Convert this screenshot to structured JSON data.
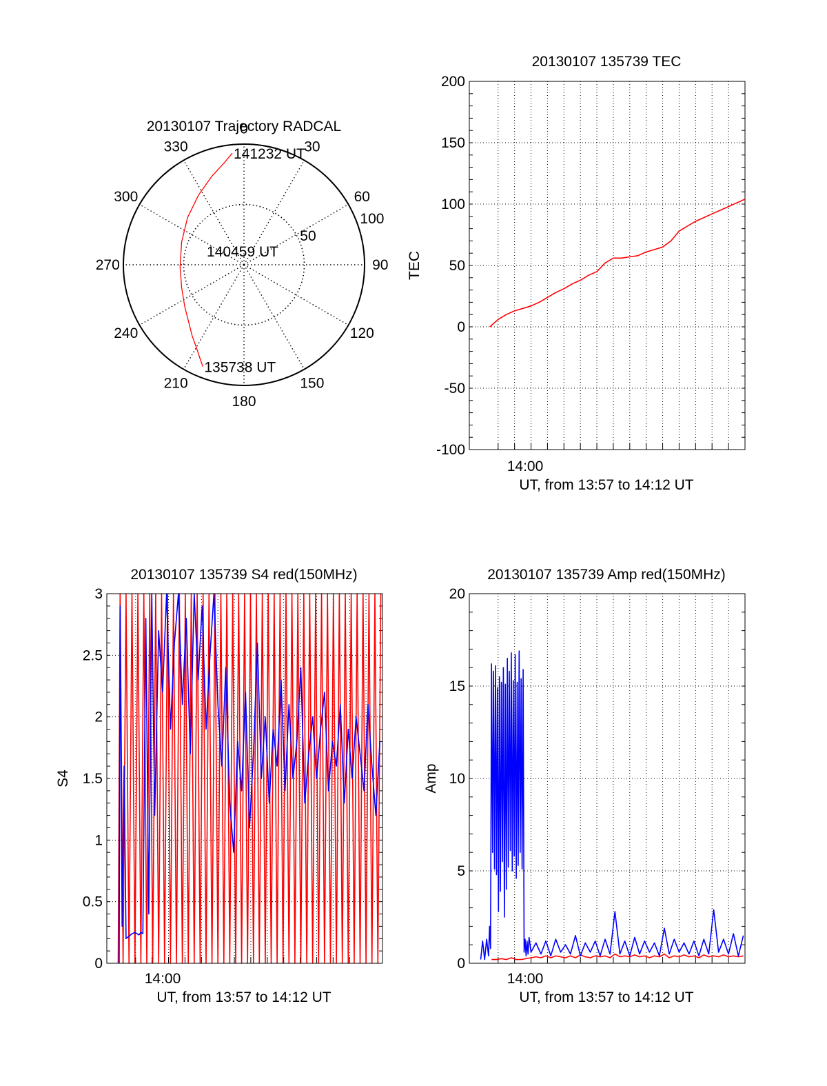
{
  "colors": {
    "red": "#ff0000",
    "blue": "#0000ff",
    "axis": "#000000",
    "grid": "#000000",
    "background": "#ffffff"
  },
  "chart_data": [
    {
      "id": "trajectory",
      "type": "scatter",
      "projection": "polar",
      "title": "20130107 Trajectory RADCAL",
      "azimuth_ticks": [
        "0",
        "30",
        "60",
        "90",
        "120",
        "150",
        "180",
        "210",
        "240",
        "270",
        "300",
        "330"
      ],
      "elevation_ring_labels": [
        "50",
        "100"
      ],
      "elevation_rings": [
        50,
        100
      ],
      "azimuth_lines_deg": [
        0,
        30,
        60,
        90,
        120,
        150,
        180,
        210,
        240,
        270,
        300,
        330
      ],
      "grid": "dotted",
      "points_label": [
        "140459 UT",
        "141232 UT",
        "135738 UT"
      ],
      "series": [
        {
          "color": "red",
          "azimuth_deg": [
            202,
            205,
            210,
            216,
            224,
            235,
            250,
            268,
            290,
            310,
            327,
            340,
            349,
            354
          ],
          "zenith": [
            91,
            86,
            79,
            73,
            66,
            60,
            55,
            53,
            55,
            61,
            69,
            78,
            86,
            93
          ]
        }
      ],
      "annotations": [
        {
          "text": "141232 UT",
          "azimuth_deg": 354,
          "zenith": 93
        },
        {
          "text": "140459 UT",
          "azimuth_deg": 0,
          "zenith": 0
        },
        {
          "text": "135738 UT",
          "azimuth_deg": 202,
          "zenith": 91
        }
      ]
    },
    {
      "id": "tec",
      "type": "line",
      "title": "20130107 135739 TEC",
      "xlabel": "UT, from 13:57 to 14:12 UT",
      "ylabel": "TEC",
      "x_tick_label": "14:00",
      "xlim": [
        13.9375,
        14.2167
      ],
      "ylim": [
        -100,
        200
      ],
      "y_ticks": [
        -100,
        -50,
        0,
        50,
        100,
        150,
        200
      ],
      "y_tick_labels": [
        "-100",
        "-50",
        "0",
        "50",
        "100",
        "150",
        "200"
      ],
      "grid": "dotted",
      "series": [
        {
          "color": "red",
          "x": [
            13.9583,
            13.9667,
            13.975,
            13.9833,
            13.9917,
            14.0,
            14.0083,
            14.0167,
            14.025,
            14.0333,
            14.0417,
            14.05,
            14.0583,
            14.0667,
            14.075,
            14.0833,
            14.0917,
            14.1,
            14.1083,
            14.1167,
            14.125,
            14.1333,
            14.1417,
            14.15,
            14.1583,
            14.1667,
            14.175,
            14.1833,
            14.1917,
            14.2,
            14.2083,
            14.2167
          ],
          "y": [
            0,
            6,
            10,
            13,
            15,
            17,
            20,
            24,
            28,
            31,
            35,
            38,
            42,
            45,
            52,
            56,
            56,
            57,
            58,
            61,
            63,
            65,
            70,
            78,
            82,
            86,
            89,
            92,
            95,
            98,
            101,
            104
          ]
        }
      ]
    },
    {
      "id": "s4",
      "type": "line",
      "title": "20130107 135739 S4 red(150MHz)",
      "xlabel": "UT, from 13:57 to 14:12 UT",
      "ylabel": "S4",
      "x_tick_label": "14:00",
      "xlim": [
        13.9375,
        14.2167
      ],
      "ylim": [
        0,
        3
      ],
      "y_ticks": [
        0,
        0.5,
        1,
        1.5,
        2,
        2.5,
        3
      ],
      "y_tick_labels": [
        "0",
        "0.5",
        "1",
        "1.5",
        "2",
        "2.5",
        "3"
      ],
      "grid": "dotted",
      "series": [
        {
          "color": "red",
          "x": [
            13.949,
            13.951,
            13.954,
            13.957,
            13.96,
            13.963,
            13.966,
            13.969,
            13.972,
            13.975,
            13.978,
            13.981,
            13.984,
            13.987,
            13.99,
            13.993,
            13.996,
            13.999,
            14.002,
            14.005,
            14.008,
            14.011,
            14.014,
            14.017,
            14.02,
            14.023,
            14.026,
            14.029,
            14.032,
            14.035,
            14.038,
            14.041,
            14.044,
            14.047,
            14.05,
            14.053,
            14.056,
            14.059,
            14.062,
            14.065,
            14.068,
            14.071,
            14.074,
            14.077,
            14.08,
            14.083,
            14.086,
            14.089,
            14.092,
            14.095,
            14.098,
            14.101,
            14.104,
            14.107,
            14.11,
            14.113,
            14.116,
            14.119,
            14.122,
            14.125,
            14.128,
            14.131,
            14.134,
            14.137,
            14.14,
            14.143,
            14.146,
            14.149,
            14.152,
            14.155,
            14.158,
            14.161,
            14.164,
            14.167,
            14.17,
            14.173,
            14.176,
            14.179,
            14.182,
            14.185,
            14.188,
            14.191,
            14.194,
            14.197,
            14.2,
            14.203,
            14.206,
            14.209,
            14.212,
            14.215
          ],
          "y": [
            0,
            3,
            0,
            3,
            0,
            3,
            0,
            3,
            0,
            3,
            0,
            3,
            0,
            3,
            0,
            3,
            0,
            3,
            0,
            3,
            0,
            3,
            0,
            3,
            0,
            3,
            0,
            3,
            0,
            3,
            0,
            3,
            0,
            3,
            0,
            3,
            0,
            3,
            0,
            3,
            0,
            3,
            0,
            3,
            0,
            3,
            0,
            3,
            0,
            3,
            0,
            3,
            0,
            3,
            0,
            3,
            0,
            3,
            0,
            3,
            0,
            3,
            0,
            3,
            0,
            3,
            0,
            3,
            0,
            3,
            0,
            3,
            0,
            3,
            0,
            3,
            0,
            3,
            0,
            3,
            0,
            3,
            0,
            3,
            0,
            3,
            0,
            3,
            0,
            3
          ]
        },
        {
          "color": "blue",
          "x": [
            13.95,
            13.951,
            13.953,
            13.955,
            13.957,
            13.96,
            13.963,
            13.966,
            13.968,
            13.97,
            13.972,
            13.974,
            13.977,
            13.98,
            13.983,
            13.986,
            13.99,
            13.994,
            13.998,
            14.002,
            14.006,
            14.01,
            14.014,
            14.018,
            14.022,
            14.026,
            14.03,
            14.034,
            14.038,
            14.042,
            14.046,
            14.05,
            14.054,
            14.058,
            14.062,
            14.066,
            14.07,
            14.074,
            14.078,
            14.082,
            14.086,
            14.09,
            14.094,
            14.098,
            14.102,
            14.106,
            14.11,
            14.114,
            14.118,
            14.122,
            14.126,
            14.13,
            14.134,
            14.138,
            14.142,
            14.146,
            14.15,
            14.154,
            14.158,
            14.162,
            14.166,
            14.17,
            14.174,
            14.178,
            14.182,
            14.186,
            14.19,
            14.194,
            14.198,
            14.202,
            14.206,
            14.21,
            14.214
          ],
          "y": [
            0,
            2.9,
            0.3,
            1.6,
            0.2,
            0.22,
            0.24,
            0.25,
            0.24,
            0.23,
            0.25,
            0.24,
            2.8,
            0.4,
            3,
            1.2,
            2.7,
            2.2,
            3,
            1.9,
            2.6,
            3,
            2.1,
            2.8,
            1.7,
            3,
            2.3,
            2.9,
            1.9,
            2.5,
            3,
            2.1,
            1.6,
            2.4,
            1.3,
            0.9,
            1.8,
            1.4,
            2.2,
            1.1,
            1.7,
            2.6,
            1.5,
            2.0,
            1.3,
            1.9,
            1.6,
            2.3,
            1.4,
            2.1,
            1.5,
            1.8,
            2.4,
            1.3,
            1.7,
            2.0,
            1.5,
            1.9,
            2.2,
            1.4,
            1.8,
            1.6,
            2.1,
            1.3,
            1.9,
            1.5,
            2.0,
            1.7,
            1.4,
            2.1,
            1.6,
            1.2,
            1.8
          ]
        }
      ]
    },
    {
      "id": "amp",
      "type": "line",
      "title": "20130107 135739 Amp red(150MHz)",
      "xlabel": "UT, from 13:57 to 14:12 UT",
      "ylabel": "Amp",
      "x_tick_label": "14:00",
      "xlim": [
        13.9375,
        14.2167
      ],
      "ylim": [
        0,
        20
      ],
      "y_ticks": [
        0,
        5,
        10,
        15,
        20
      ],
      "y_tick_labels": [
        "0",
        "5",
        "10",
        "15",
        "20"
      ],
      "grid": "dotted",
      "series": [
        {
          "color": "red",
          "x": [
            13.96,
            13.965,
            13.97,
            13.975,
            13.98,
            13.985,
            13.99,
            13.995,
            14.0,
            14.005,
            14.01,
            14.015,
            14.02,
            14.025,
            14.03,
            14.035,
            14.04,
            14.045,
            14.05,
            14.055,
            14.06,
            14.065,
            14.07,
            14.075,
            14.08,
            14.085,
            14.09,
            14.095,
            14.1,
            14.105,
            14.11,
            14.115,
            14.12,
            14.125,
            14.13,
            14.135,
            14.14,
            14.145,
            14.15,
            14.155,
            14.16,
            14.165,
            14.17,
            14.175,
            14.18,
            14.185,
            14.19,
            14.195,
            14.2,
            14.205,
            14.21,
            14.215
          ],
          "y": [
            0.2,
            0.2,
            0.25,
            0.2,
            0.3,
            0.2,
            0.2,
            0.25,
            0.3,
            0.35,
            0.3,
            0.4,
            0.3,
            0.4,
            0.35,
            0.3,
            0.4,
            0.3,
            0.45,
            0.35,
            0.3,
            0.4,
            0.35,
            0.4,
            0.3,
            0.5,
            0.35,
            0.4,
            0.35,
            0.45,
            0.35,
            0.4,
            0.3,
            0.4,
            0.35,
            0.5,
            0.3,
            0.4,
            0.35,
            0.45,
            0.35,
            0.4,
            0.3,
            0.45,
            0.35,
            0.4,
            0.35,
            0.45,
            0.35,
            0.4,
            0.35,
            0.4
          ]
        },
        {
          "color": "blue",
          "x": [
            13.949,
            13.951,
            13.953,
            13.955,
            13.957,
            13.958,
            13.959,
            13.96,
            13.961,
            13.962,
            13.963,
            13.964,
            13.965,
            13.966,
            13.967,
            13.968,
            13.969,
            13.97,
            13.971,
            13.972,
            13.973,
            13.974,
            13.975,
            13.976,
            13.977,
            13.978,
            13.979,
            13.98,
            13.981,
            13.982,
            13.983,
            13.984,
            13.985,
            13.986,
            13.987,
            13.988,
            13.989,
            13.99,
            13.991,
            13.992,
            13.993,
            13.994,
            13.995,
            13.996,
            13.997,
            13.998,
            14.0,
            14.005,
            14.01,
            14.015,
            14.02,
            14.025,
            14.03,
            14.035,
            14.04,
            14.045,
            14.05,
            14.055,
            14.06,
            14.065,
            14.07,
            14.075,
            14.08,
            14.085,
            14.09,
            14.095,
            14.1,
            14.105,
            14.11,
            14.115,
            14.12,
            14.125,
            14.13,
            14.135,
            14.14,
            14.145,
            14.15,
            14.155,
            14.16,
            14.165,
            14.17,
            14.175,
            14.18,
            14.185,
            14.19,
            14.195,
            14.2,
            14.205,
            14.21,
            14.215
          ],
          "y": [
            0.2,
            1.2,
            0.2,
            1.3,
            0.4,
            2.0,
            0.8,
            16.2,
            6.0,
            15.8,
            5.1,
            16.1,
            4.8,
            14.9,
            2.8,
            15.5,
            3.9,
            15.2,
            5.5,
            16.0,
            2.5,
            15.1,
            4.0,
            16.5,
            5.2,
            15.8,
            6.1,
            16.8,
            5.0,
            15.3,
            5.8,
            16.7,
            4.6,
            15.2,
            5.3,
            16.9,
            6.0,
            15.4,
            5.1,
            15.9,
            0.6,
            1.3,
            0.4,
            1.2,
            0.5,
            1.4,
            0.6,
            1.1,
            0.5,
            1.2,
            0.4,
            1.3,
            0.6,
            1.0,
            0.5,
            1.5,
            0.4,
            1.1,
            0.6,
            1.2,
            0.4,
            1.3,
            0.5,
            2.8,
            0.5,
            1.2,
            0.4,
            1.4,
            0.5,
            1.2,
            0.6,
            1.1,
            0.4,
            1.9,
            0.5,
            1.3,
            0.6,
            1.1,
            0.5,
            1.2,
            0.4,
            1.3,
            0.5,
            2.9,
            0.6,
            1.3,
            0.5,
            1.6,
            0.4,
            1.5
          ]
        }
      ]
    }
  ]
}
